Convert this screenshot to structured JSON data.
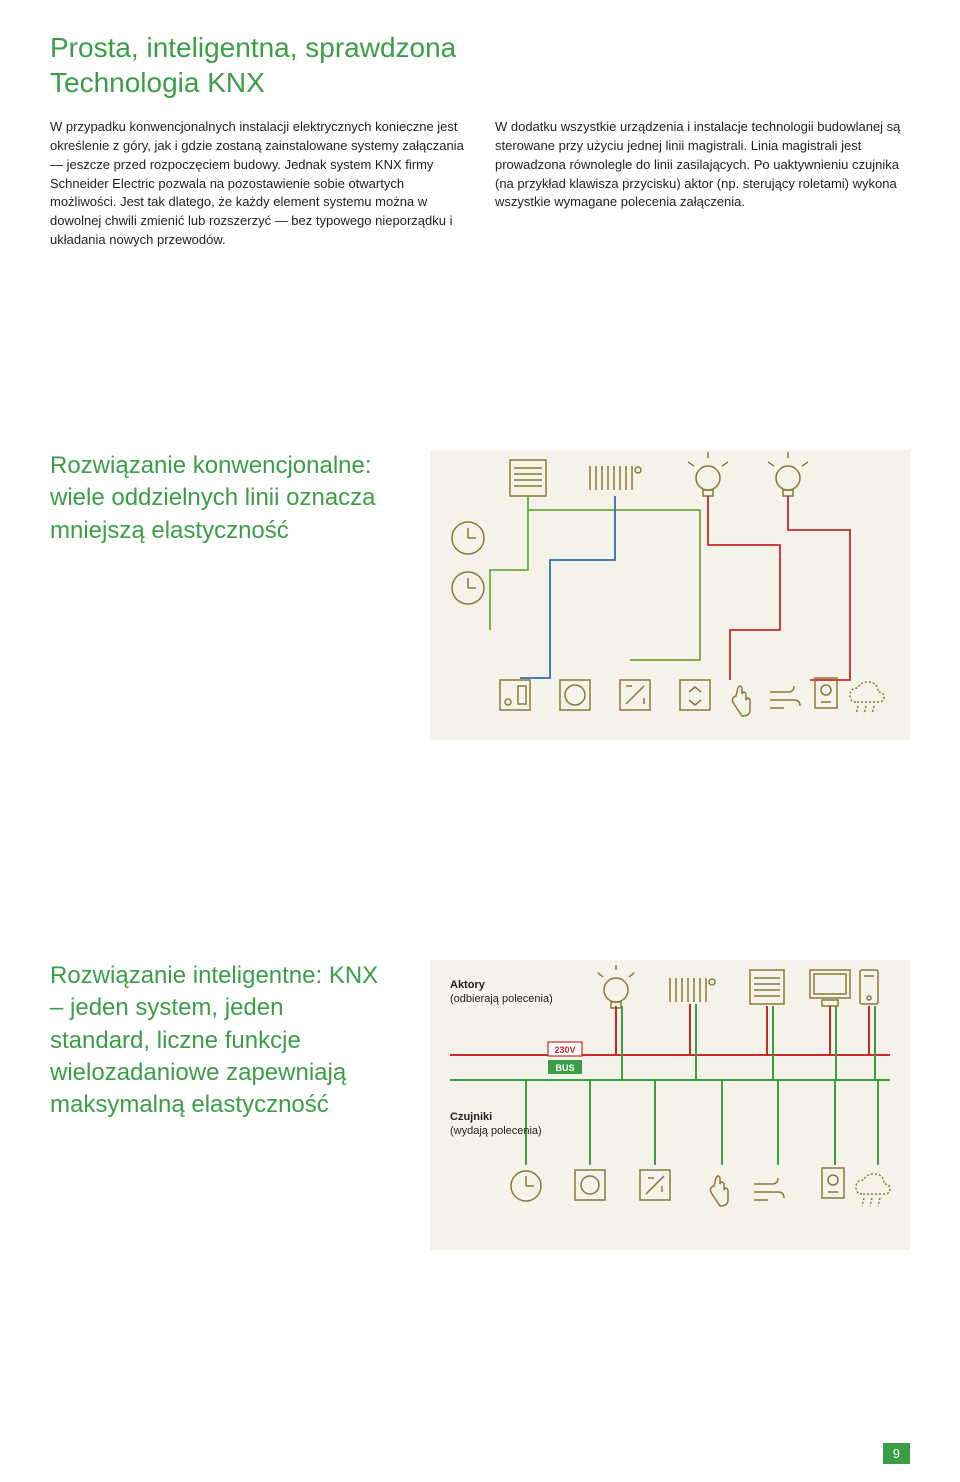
{
  "title": "Prosta, inteligentna, sprawdzona\nTechnologia KNX",
  "paragraph_left": "W przypadku konwencjonalnych instalacji elektrycznych konieczne jest określenie z góry, jak i gdzie zostaną zainstalowane systemy załączania — jeszcze przed rozpoczęciem budowy. Jednak system KNX firmy Schneider Electric pozwala na pozostawienie sobie otwartych możliwości. Jest tak dlatego, że każdy element systemu można w dowolnej chwili zmienić lub rozszerzyć — bez typowego nieporządku i układania nowych przewodów.",
  "paragraph_right": "W dodatku wszystkie urządzenia i instalacje technologii budowlanej są sterowane przy użyciu jednej linii magistrali. Linia magistrali jest prowadzona równolegle do linii zasilających. Po uaktywnieniu czujnika (na przykład klawisza przycisku) aktor (np. sterujący roletami) wykona wszystkie wymagane polecenia załączenia.",
  "section1": {
    "lead": "Rozwiązanie konwencjonalne: wiele oddzielnych linii oznacza mniejszą elastyczność"
  },
  "section2": {
    "lead": "Rozwiązanie inteligentne: KNX – jeden system, jeden standard, liczne funkcje wielozadaniowe zapewniają maksymalną elastyczność",
    "actors_label": "Aktory",
    "actors_sub": "(odbierają polecenia)",
    "sensors_label": "Czujniki",
    "sensors_sub": "(wydają polecenia)",
    "badge_230v": "230V",
    "badge_bus": "BUS"
  },
  "colors": {
    "green": "#3b9e47",
    "olive": "#8a7a3a",
    "red": "#c92a2a",
    "blue": "#2b6fb5",
    "lightgreen": "#6faa3e",
    "bg_panel": "#f5f2ea",
    "panel_border": "#8a7a3a"
  },
  "page_number": "9"
}
